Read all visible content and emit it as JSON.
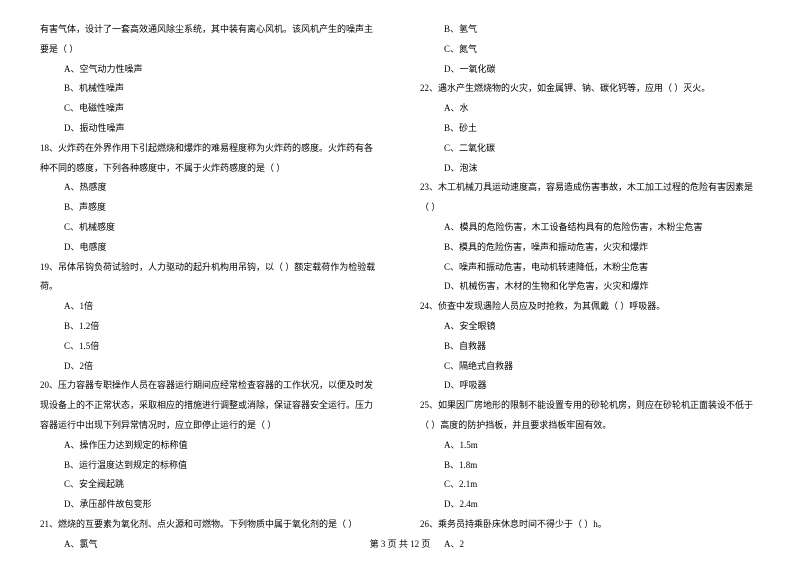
{
  "left_column": {
    "q17_cont": "有害气体，设计了一套高效通风除尘系统，其中装有离心风机。该风机产生的噪声主要是（    ）",
    "q17_options": [
      "A、空气动力性噪声",
      "B、机械性噪声",
      "C、电磁性噪声",
      "D、振动性噪声"
    ],
    "q18": "18、火炸药在外界作用下引起燃烧和爆炸的难易程度称为火炸药的感度。火炸药有各种不同的感度，下列各种感度中，不属于火炸药感度的是（    ）",
    "q18_options": [
      "A、热感度",
      "B、声感度",
      "C、机械感度",
      "D、电感度"
    ],
    "q19": "19、吊体吊钩负荷试验时，人力驱动的起升机构用吊钩，以（    ）额定载荷作为检验载荷。",
    "q19_options": [
      "A、1倍",
      "B、1.2倍",
      "C、1.5倍",
      "D、2倍"
    ],
    "q20": "20、压力容器专职操作人员在容器运行期间应经常检查容器的工作状况，以便及时发现设备上的不正常状态，采取相应的措施进行调整或消除，保证容器安全运行。压力容器运行中出现下列异常情况时，应立即停止运行的是（    ）",
    "q20_options": [
      "A、操作压力达到规定的标称值",
      "B、运行温度达到规定的标称值",
      "C、安全阀起跳",
      "D、承压部件故包变形"
    ],
    "q21": "21、燃烧的互要素为氧化剂、点火源和可燃物。下列物质中属于氧化剂的是（    ）",
    "q21_options": [
      "A、氯气"
    ]
  },
  "right_column": {
    "q21_options_cont": [
      "B、氢气",
      "C、氮气",
      "D、一氧化碳"
    ],
    "q22": "22、遇水产生燃烧物的火灾，如金属钾、钠、碳化钙等，应用（    ）灭火。",
    "q22_options": [
      "A、水",
      "B、砂土",
      "C、二氧化碳",
      "D、泡沫"
    ],
    "q23": "23、木工机械刀具运动速度高，容易造成伤害事故，木工加工过程的危险有害因素是（    ）",
    "q23_options": [
      "A、模具的危险伤害，木工设备结构具有的危险伤害，木粉尘危害",
      "B、模具的危险伤害，噪声和振动危害，火灾和爆炸",
      "C、噪声和振动危害，电动机转速降低，木粉尘危害",
      "D、机械伤害，木材的生物和化学危害，火灾和爆炸"
    ],
    "q24": "24、侦查中发现遇险人员应及时抢救，为其佩戴（    ）呼吸器。",
    "q24_options": [
      "A、安全眼镜",
      "B、自救器",
      "C、隔绝式自救器",
      "D、呼吸器"
    ],
    "q25": "25、如果因厂房地形的限制不能设置专用的砂轮机房，则应在砂轮机正面装设不低于（    ）高度的防护挡板，并且要求挡板牢固有效。",
    "q25_options": [
      "A、1.5m",
      "B、1.8m",
      "C、2.1m",
      "D、2.4m"
    ],
    "q26": "26、乘务员持乘卧床休息时间不得少于（    ）h。",
    "q26_options": [
      "A、2"
    ]
  },
  "footer": "第 3 页 共 12 页"
}
